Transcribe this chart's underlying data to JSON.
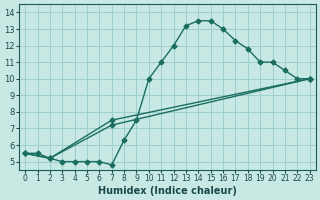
{
  "xlabel": "Humidex (Indice chaleur)",
  "xlim": [
    -0.5,
    23.5
  ],
  "ylim": [
    4.5,
    14.5
  ],
  "xticks": [
    0,
    1,
    2,
    3,
    4,
    5,
    6,
    7,
    8,
    9,
    10,
    11,
    12,
    13,
    14,
    15,
    16,
    17,
    18,
    19,
    20,
    21,
    22,
    23
  ],
  "yticks": [
    5,
    6,
    7,
    8,
    9,
    10,
    11,
    12,
    13,
    14
  ],
  "bg_color": "#c8e8e4",
  "grid_color": "#9ecece",
  "line_color": "#1a6e60",
  "line1_x": [
    0,
    1,
    2,
    3,
    4,
    5,
    6,
    7,
    8,
    9,
    10,
    11,
    12,
    13,
    14,
    15,
    16,
    17,
    18,
    19,
    20,
    21,
    22,
    23
  ],
  "line1_y": [
    5.5,
    5.5,
    5.2,
    5.0,
    5.0,
    5.0,
    5.0,
    4.8,
    6.3,
    7.5,
    10.0,
    11.0,
    12.0,
    13.2,
    13.5,
    13.5,
    13.0,
    12.3,
    11.8,
    11.0,
    11.0,
    10.5,
    10.0,
    10.0
  ],
  "line2_x": [
    0,
    2,
    7,
    23
  ],
  "line2_y": [
    5.5,
    5.2,
    7.5,
    10.0
  ],
  "line3_x": [
    0,
    2,
    7,
    23
  ],
  "line3_y": [
    5.5,
    5.2,
    7.2,
    10.0
  ]
}
